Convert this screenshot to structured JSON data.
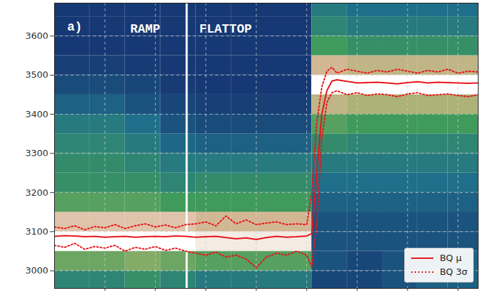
{
  "chart_data": {
    "type": "line",
    "xlim": [
      0,
      8.4
    ],
    "ylim": [
      2955,
      3684
    ],
    "xticks": [
      1,
      2,
      3,
      4,
      5,
      6,
      7,
      8
    ],
    "yticks": [
      3000,
      3100,
      3200,
      3300,
      3400,
      3500,
      3600
    ],
    "tick_labels": "y",
    "grid": true,
    "legend": "lower right",
    "annotations": [
      {
        "text": "a)",
        "x": 0.25,
        "y": 3625
      },
      {
        "text": "RAMP",
        "x": 1.5,
        "y": 3618
      },
      {
        "text": "FLATTOP",
        "x": 2.87,
        "y": 3618
      }
    ],
    "phase_boundary": 2.62,
    "x": [
      0,
      0.2,
      0.4,
      0.6,
      0.8,
      1.0,
      1.2,
      1.4,
      1.6,
      1.8,
      2.0,
      2.2,
      2.4,
      2.6,
      2.8,
      3.0,
      3.2,
      3.4,
      3.6,
      3.8,
      4.0,
      4.2,
      4.4,
      4.6,
      4.8,
      5.0,
      5.1,
      5.2,
      5.3,
      5.4,
      5.5,
      5.6,
      5.8,
      6.0,
      6.2,
      6.4,
      6.6,
      6.8,
      7.0,
      7.2,
      7.4,
      7.6,
      7.8,
      8.0,
      8.2,
      8.4
    ],
    "series": [
      {
        "name": "BQ μ",
        "color": "#e8141a",
        "line_style": "solid",
        "values": [
          3088,
          3090,
          3089,
          3087,
          3088,
          3086,
          3087,
          3088,
          3086,
          3087,
          3088,
          3087,
          3089,
          3088,
          3086,
          3087,
          3088,
          3085,
          3082,
          3084,
          3080,
          3085,
          3088,
          3086,
          3087,
          3089,
          3095,
          3250,
          3400,
          3460,
          3485,
          3488,
          3484,
          3480,
          3481,
          3482,
          3480,
          3478,
          3481,
          3483,
          3480,
          3482,
          3481,
          3480,
          3479,
          3480
        ]
      },
      {
        "name": "BQ 3σ",
        "color": "#e8141a",
        "line_style": "dotted",
        "values": [
          3112,
          3108,
          3115,
          3105,
          3113,
          3110,
          3118,
          3108,
          3115,
          3120,
          3112,
          3117,
          3110,
          3118,
          3120,
          3125,
          3115,
          3140,
          3120,
          3130,
          3118,
          3122,
          3125,
          3118,
          3120,
          3118,
          3200,
          3380,
          3470,
          3510,
          3520,
          3505,
          3515,
          3510,
          3505,
          3512,
          3508,
          3515,
          3510,
          3505,
          3512,
          3508,
          3515,
          3505,
          3510,
          3508
        ]
      },
      {
        "name": "BQ 3σ",
        "color": "#e8141a",
        "line_style": "dotted",
        "values": [
          3065,
          3060,
          3070,
          3055,
          3062,
          3058,
          3065,
          3050,
          3060,
          3055,
          3062,
          3052,
          3058,
          3050,
          3045,
          3040,
          3048,
          3035,
          3040,
          3030,
          3008,
          3035,
          3045,
          3040,
          3050,
          3040,
          3010,
          3120,
          3340,
          3430,
          3455,
          3460,
          3450,
          3455,
          3448,
          3452,
          3450,
          3445,
          3452,
          3455,
          3448,
          3450,
          3452,
          3448,
          3445,
          3450
        ]
      }
    ],
    "heatmap": {
      "x_edges": [
        0,
        0.7,
        1.4,
        2.1,
        2.8,
        3.5,
        4.2,
        5.1,
        5.8,
        6.5,
        7.2,
        7.8,
        8.4
      ],
      "y_edges": [
        2955,
        3000,
        3050,
        3100,
        3150,
        3200,
        3250,
        3300,
        3350,
        3400,
        3450,
        3500,
        3550,
        3600,
        3650,
        3684
      ],
      "cells": [
        [
          0.35,
          0.35,
          0.4,
          0.35,
          0.3,
          0.3,
          0.3,
          0.1,
          0.1,
          0.15,
          0.2,
          0.2
        ],
        [
          0.55,
          0.55,
          0.6,
          0.55,
          0.5,
          0.5,
          0.5,
          0.15,
          0.1,
          0.15,
          0.2,
          0.2
        ],
        [
          1,
          1,
          1,
          1,
          0.95,
          0.95,
          0.95,
          0.15,
          0.15,
          0.15,
          0.15,
          0.15
        ],
        [
          0.85,
          0.85,
          0.85,
          0.85,
          0.8,
          0.8,
          0.8,
          0.15,
          0.15,
          0.15,
          0.15,
          0.15
        ],
        [
          0.5,
          0.5,
          0.5,
          0.45,
          0.45,
          0.45,
          0.45,
          0.2,
          0.2,
          0.2,
          0.2,
          0.2
        ],
        [
          0.4,
          0.4,
          0.4,
          0.35,
          0.38,
          0.38,
          0.38,
          0.25,
          0.25,
          0.25,
          0.25,
          0.25
        ],
        [
          0.38,
          0.38,
          0.35,
          0.3,
          0.3,
          0.3,
          0.3,
          0.3,
          0.3,
          0.3,
          0.3,
          0.3
        ],
        [
          0.35,
          0.35,
          0.3,
          0.22,
          0.2,
          0.2,
          0.2,
          0.38,
          0.35,
          0.35,
          0.35,
          0.35
        ],
        [
          0.3,
          0.3,
          0.25,
          0.15,
          0.12,
          0.12,
          0.12,
          0.5,
          0.45,
          0.45,
          0.45,
          0.45
        ],
        [
          0.2,
          0.2,
          0.15,
          0.1,
          0.08,
          0.08,
          0.08,
          0.75,
          0.7,
          0.7,
          0.7,
          0.7
        ],
        [
          0.12,
          0.12,
          0.1,
          0.06,
          0.05,
          0.05,
          0.05,
          1,
          1,
          1,
          1,
          1
        ],
        [
          0.08,
          0.08,
          0.06,
          0.05,
          0.05,
          0.05,
          0.05,
          0.8,
          0.75,
          0.75,
          0.75,
          0.75
        ],
        [
          0.05,
          0.05,
          0.05,
          0.05,
          0.05,
          0.05,
          0.05,
          0.45,
          0.4,
          0.4,
          0.4,
          0.4
        ],
        [
          0.05,
          0.05,
          0.05,
          0.05,
          0.05,
          0.05,
          0.05,
          0.35,
          0.3,
          0.3,
          0.3,
          0.3
        ],
        [
          0.05,
          0.05,
          0.05,
          0.05,
          0.05,
          0.05,
          0.05,
          0.3,
          0.25,
          0.25,
          0.25,
          0.25
        ]
      ]
    }
  }
}
